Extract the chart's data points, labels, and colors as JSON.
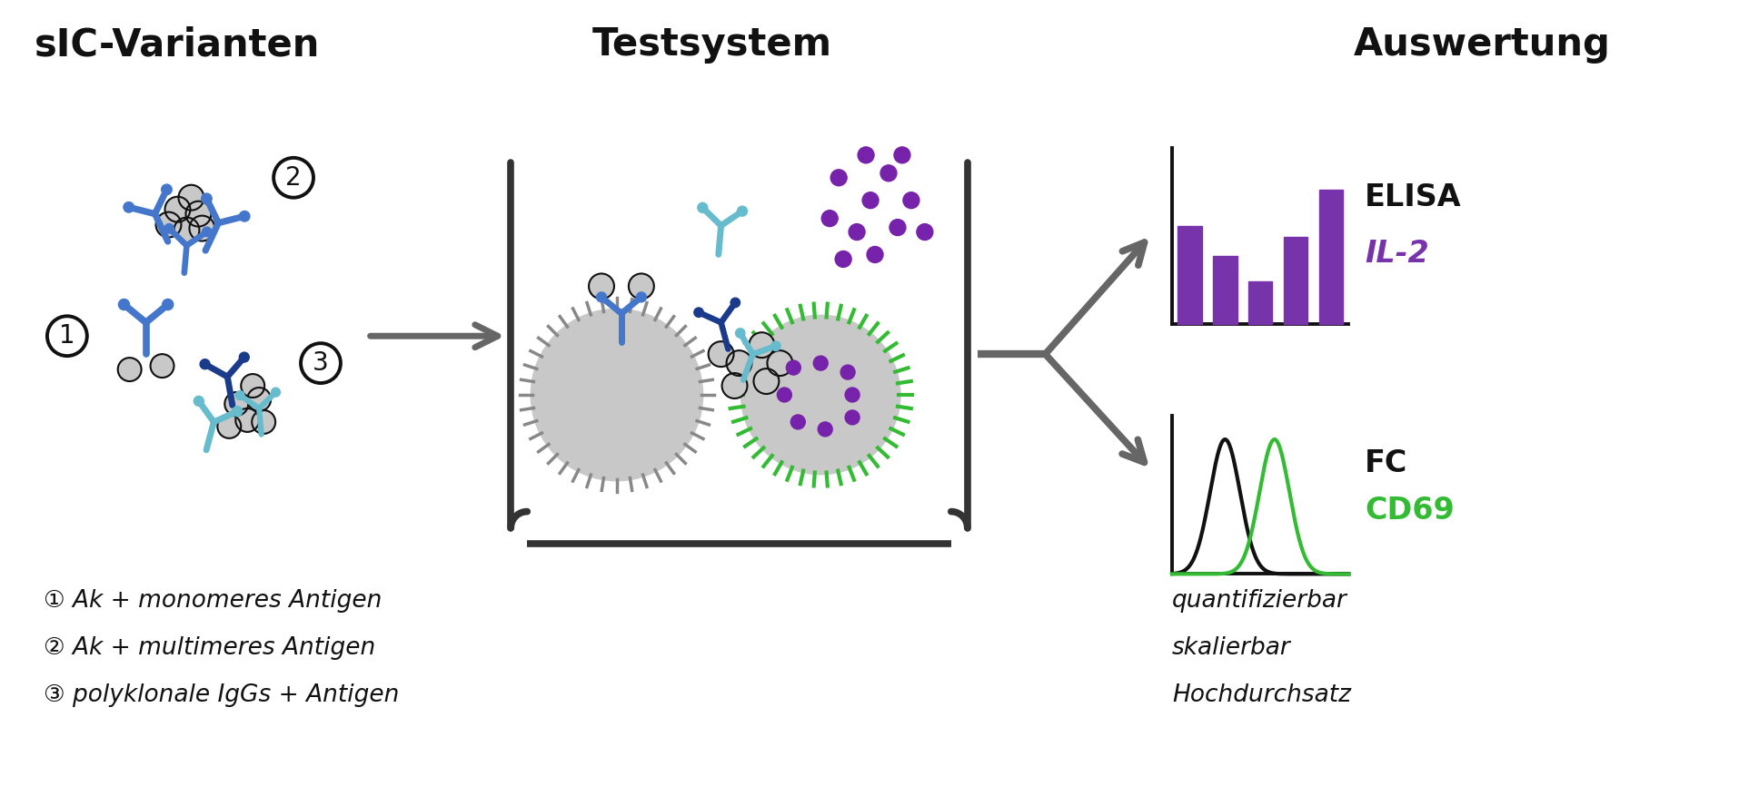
{
  "title_left": "sIC-Varianten",
  "title_center": "Testsystem",
  "title_right": "Auswertung",
  "title_fontsize": 30,
  "bg_color": "#ffffff",
  "dark_gray": "#666666",
  "blue_medium": "#4477cc",
  "blue_dark": "#1a3a8a",
  "teal_light": "#66bbcc",
  "teal_dark": "#2288aa",
  "purple_bar": "#7733aa",
  "purple_dot": "#7722aa",
  "green_bead": "#33bb33",
  "green_fc": "#33bb33",
  "antigen_dark": "#444444",
  "cell_gray": "#c8c8c8",
  "cell_spike": "#888888",
  "elisa_bars": [
    0.62,
    0.43,
    0.27,
    0.55,
    0.85
  ],
  "labels": [
    "① Ak + monomeres Antigen",
    "② Ak + multimeres Antigen",
    "③ polyklonale IgGs + Antigen"
  ],
  "auswertung_labels": [
    "quantifizierbar",
    "skalierbar",
    "Hochdurchsatz"
  ]
}
